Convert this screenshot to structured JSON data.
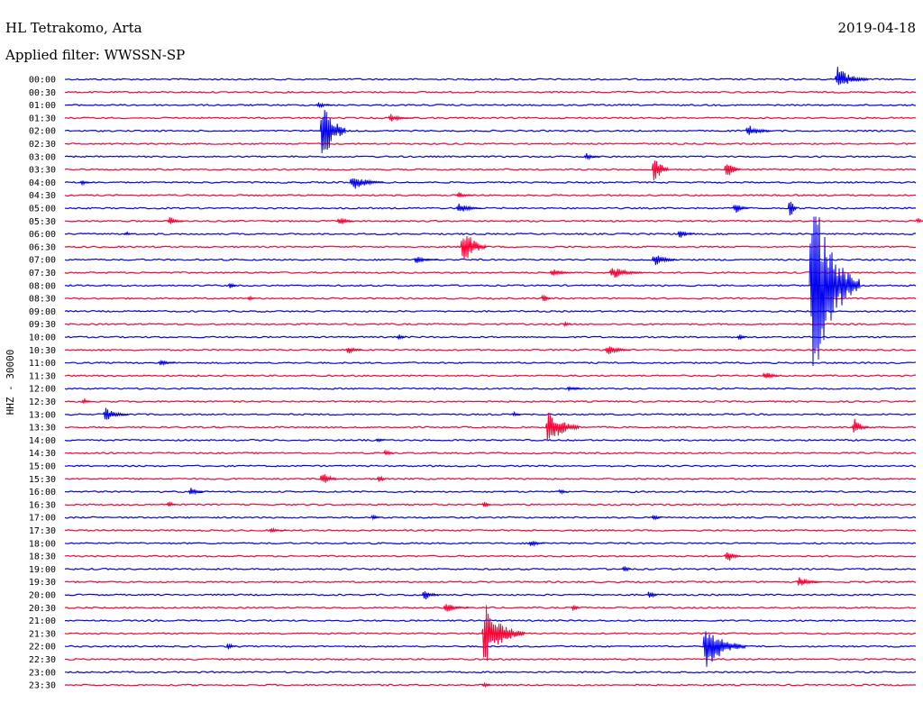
{
  "header": {
    "station": "HL Tetrakomo, Arta",
    "date": "2019-04-18",
    "filter": "Applied filter: WWSSN-SP"
  },
  "chart_data": {
    "type": "line",
    "title": "HL Tetrakomo, Arta",
    "subtitle": "Applied filter: WWSSN-SP",
    "ylabel": "HHZ - 30000",
    "row_labels": [
      "00:00",
      "00:30",
      "01:00",
      "01:30",
      "02:00",
      "02:30",
      "03:00",
      "03:30",
      "04:00",
      "04:30",
      "05:00",
      "05:30",
      "06:00",
      "06:30",
      "07:00",
      "07:30",
      "08:00",
      "08:30",
      "09:00",
      "09:30",
      "10:00",
      "10:30",
      "11:00",
      "11:30",
      "12:00",
      "12:30",
      "13:00",
      "13:30",
      "14:00",
      "14:30",
      "15:00",
      "15:30",
      "16:00",
      "16:30",
      "17:00",
      "17:30",
      "18:00",
      "18:30",
      "19:00",
      "19:30",
      "20:00",
      "20:30",
      "21:00",
      "21:30",
      "22:00",
      "22:30",
      "23:00",
      "23:30"
    ],
    "colors": {
      "even": "#0000ee",
      "odd": "#ff0033"
    },
    "events": [
      {
        "row": 0,
        "x": 0.905,
        "amp": 18,
        "dur": 0.04
      },
      {
        "row": 2,
        "x": 0.295,
        "amp": 5,
        "dur": 0.02
      },
      {
        "row": 3,
        "x": 0.38,
        "amp": 6,
        "dur": 0.03
      },
      {
        "row": 4,
        "x": 0.3,
        "amp": 60,
        "dur": 0.03
      },
      {
        "row": 4,
        "x": 0.8,
        "amp": 10,
        "dur": 0.03
      },
      {
        "row": 6,
        "x": 0.61,
        "amp": 6,
        "dur": 0.02
      },
      {
        "row": 7,
        "x": 0.69,
        "amp": 28,
        "dur": 0.02
      },
      {
        "row": 7,
        "x": 0.775,
        "amp": 18,
        "dur": 0.02
      },
      {
        "row": 8,
        "x": 0.018,
        "amp": 8,
        "dur": 0.01
      },
      {
        "row": 8,
        "x": 0.335,
        "amp": 12,
        "dur": 0.04
      },
      {
        "row": 9,
        "x": 0.46,
        "amp": 7,
        "dur": 0.02
      },
      {
        "row": 10,
        "x": 0.46,
        "amp": 9,
        "dur": 0.03
      },
      {
        "row": 10,
        "x": 0.785,
        "amp": 10,
        "dur": 0.02
      },
      {
        "row": 10,
        "x": 0.85,
        "amp": 25,
        "dur": 0.01
      },
      {
        "row": 11,
        "x": 0.12,
        "amp": 8,
        "dur": 0.02
      },
      {
        "row": 11,
        "x": 0.32,
        "amp": 8,
        "dur": 0.02
      },
      {
        "row": 11,
        "x": 1.0,
        "amp": 8,
        "dur": 0.01
      },
      {
        "row": 12,
        "x": 0.07,
        "amp": 5,
        "dur": 0.01
      },
      {
        "row": 12,
        "x": 0.72,
        "amp": 8,
        "dur": 0.02
      },
      {
        "row": 13,
        "x": 0.465,
        "amp": 35,
        "dur": 0.03
      },
      {
        "row": 14,
        "x": 0.41,
        "amp": 6,
        "dur": 0.03
      },
      {
        "row": 14,
        "x": 0.69,
        "amp": 10,
        "dur": 0.03
      },
      {
        "row": 15,
        "x": 0.64,
        "amp": 10,
        "dur": 0.04
      },
      {
        "row": 15,
        "x": 0.57,
        "amp": 6,
        "dur": 0.03
      },
      {
        "row": 16,
        "x": 0.192,
        "amp": 8,
        "dur": 0.01
      },
      {
        "row": 17,
        "x": 0.56,
        "amp": 12,
        "dur": 0.01
      },
      {
        "row": 17,
        "x": 0.215,
        "amp": 6,
        "dur": 0.01
      },
      {
        "row": 16,
        "x": 0.875,
        "amp": 150,
        "dur": 0.06
      },
      {
        "row": 19,
        "x": 0.585,
        "amp": 6,
        "dur": 0.01
      },
      {
        "row": 20,
        "x": 0.39,
        "amp": 8,
        "dur": 0.01
      },
      {
        "row": 20,
        "x": 0.79,
        "amp": 10,
        "dur": 0.01
      },
      {
        "row": 21,
        "x": 0.33,
        "amp": 7,
        "dur": 0.02
      },
      {
        "row": 21,
        "x": 0.635,
        "amp": 8,
        "dur": 0.03
      },
      {
        "row": 22,
        "x": 0.11,
        "amp": 6,
        "dur": 0.02
      },
      {
        "row": 23,
        "x": 0.82,
        "amp": 10,
        "dur": 0.02
      },
      {
        "row": 24,
        "x": 0.59,
        "amp": 5,
        "dur": 0.02
      },
      {
        "row": 25,
        "x": 0.02,
        "amp": 8,
        "dur": 0.01
      },
      {
        "row": 26,
        "x": 0.045,
        "amp": 10,
        "dur": 0.03
      },
      {
        "row": 26,
        "x": 0.525,
        "amp": 6,
        "dur": 0.01
      },
      {
        "row": 27,
        "x": 0.565,
        "amp": 30,
        "dur": 0.04
      },
      {
        "row": 27,
        "x": 0.925,
        "amp": 15,
        "dur": 0.02
      },
      {
        "row": 28,
        "x": 0.365,
        "amp": 6,
        "dur": 0.01
      },
      {
        "row": 29,
        "x": 0.375,
        "amp": 10,
        "dur": 0.01
      },
      {
        "row": 31,
        "x": 0.3,
        "amp": 14,
        "dur": 0.02
      },
      {
        "row": 31,
        "x": 0.367,
        "amp": 10,
        "dur": 0.01
      },
      {
        "row": 32,
        "x": 0.145,
        "amp": 8,
        "dur": 0.02
      },
      {
        "row": 32,
        "x": 0.58,
        "amp": 8,
        "dur": 0.01
      },
      {
        "row": 33,
        "x": 0.12,
        "amp": 8,
        "dur": 0.01
      },
      {
        "row": 33,
        "x": 0.49,
        "amp": 10,
        "dur": 0.01
      },
      {
        "row": 34,
        "x": 0.36,
        "amp": 8,
        "dur": 0.01
      },
      {
        "row": 34,
        "x": 0.69,
        "amp": 8,
        "dur": 0.01
      },
      {
        "row": 35,
        "x": 0.24,
        "amp": 4,
        "dur": 0.02
      },
      {
        "row": 36,
        "x": 0.545,
        "amp": 6,
        "dur": 0.02
      },
      {
        "row": 37,
        "x": 0.775,
        "amp": 14,
        "dur": 0.02
      },
      {
        "row": 38,
        "x": 0.655,
        "amp": 10,
        "dur": 0.01
      },
      {
        "row": 39,
        "x": 0.86,
        "amp": 8,
        "dur": 0.03
      },
      {
        "row": 40,
        "x": 0.42,
        "amp": 10,
        "dur": 0.02
      },
      {
        "row": 40,
        "x": 0.685,
        "amp": 14,
        "dur": 0.01
      },
      {
        "row": 41,
        "x": 0.445,
        "amp": 8,
        "dur": 0.03
      },
      {
        "row": 41,
        "x": 0.595,
        "amp": 10,
        "dur": 0.01
      },
      {
        "row": 43,
        "x": 0.49,
        "amp": 45,
        "dur": 0.05
      },
      {
        "row": 44,
        "x": 0.19,
        "amp": 10,
        "dur": 0.01
      },
      {
        "row": 44,
        "x": 0.75,
        "amp": 35,
        "dur": 0.05
      },
      {
        "row": 47,
        "x": 0.49,
        "amp": 6,
        "dur": 0.01
      }
    ]
  }
}
